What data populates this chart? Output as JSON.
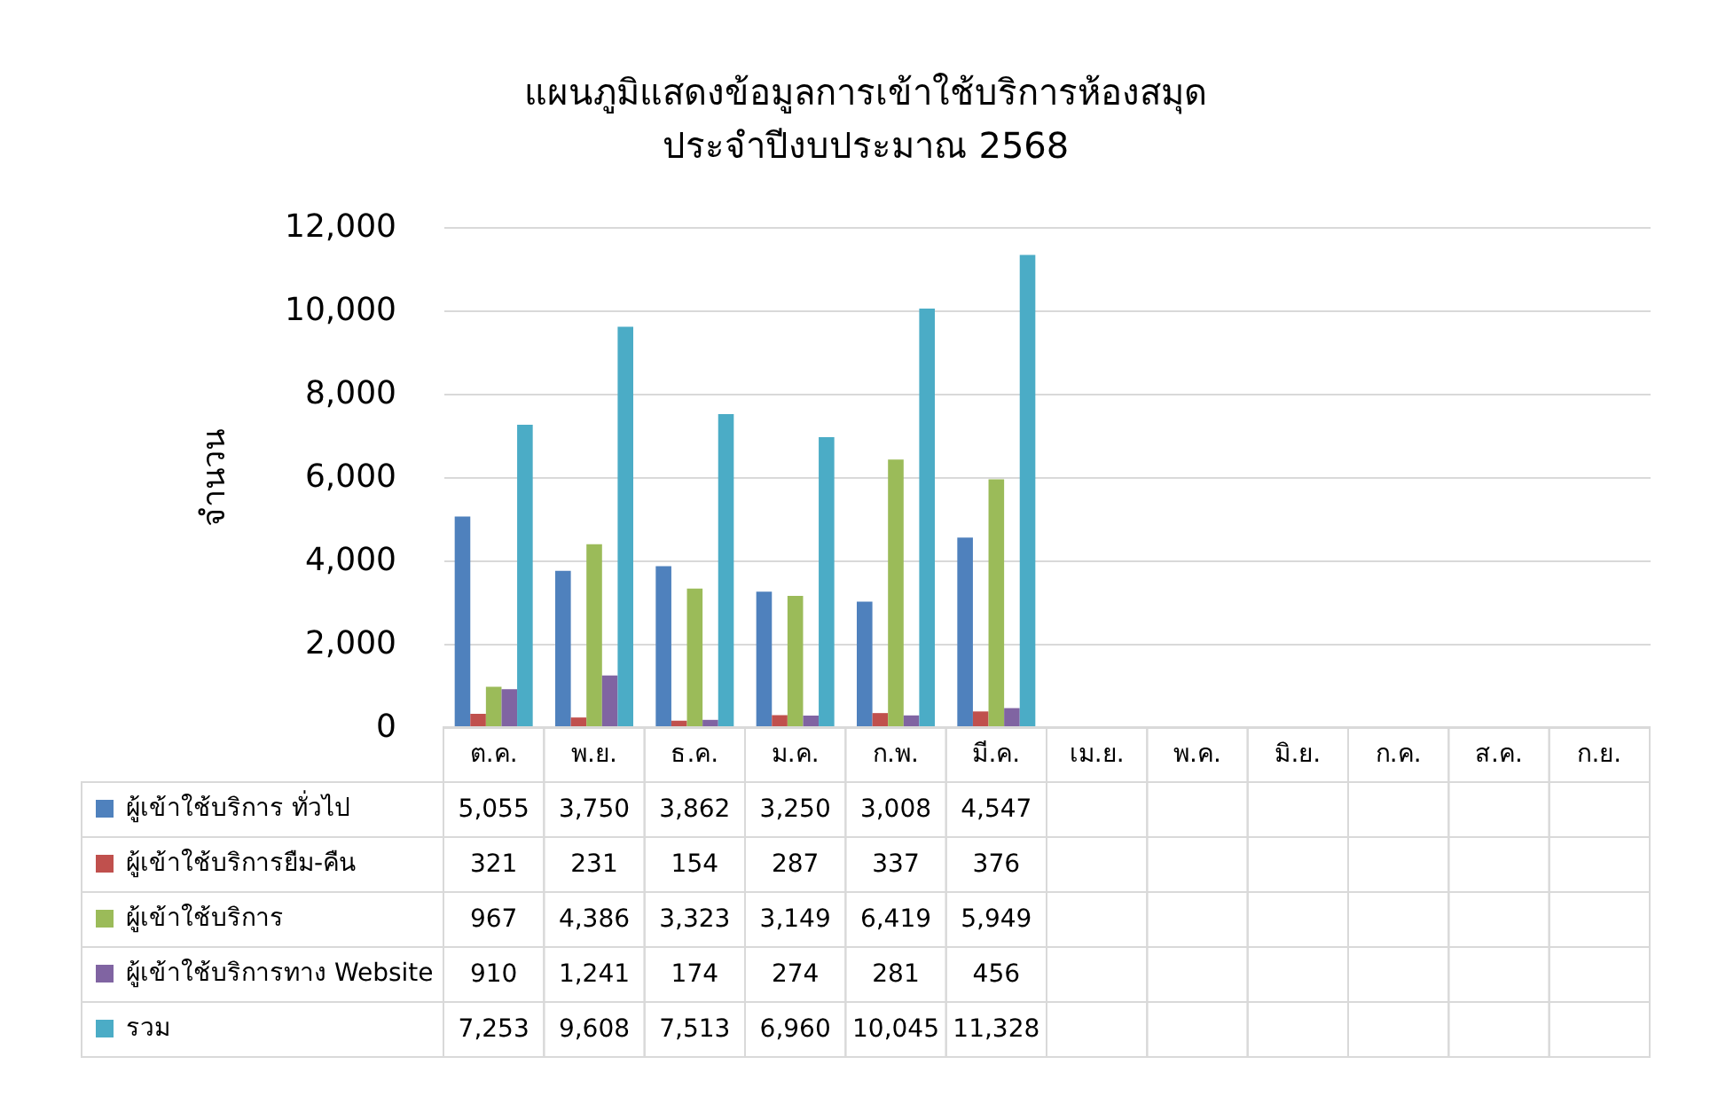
{
  "chart_data": {
    "type": "bar",
    "title": "แผนภูมิแสดงข้อมูลการเข้าใช้บริการห้องสมุด",
    "subtitle": "ประจำปีงบประมาณ 2568",
    "ylabel": "จำนวน",
    "categories": [
      "ต.ค.",
      "พ.ย.",
      "ธ.ค.",
      "ม.ค.",
      "ก.พ.",
      "มี.ค.",
      "เม.ย.",
      "พ.ค.",
      "มิ.ย.",
      "ก.ค.",
      "ส.ค.",
      "ก.ย."
    ],
    "series": [
      {
        "name": "ผู้เข้าใช้บริการ ทั่วไป",
        "color": "#4f81bd",
        "values": [
          5055,
          3750,
          3862,
          3250,
          3008,
          4547,
          null,
          null,
          null,
          null,
          null,
          null
        ],
        "value_labels": [
          "5,055",
          "3,750",
          "3,862",
          "3,250",
          "3,008",
          "4,547",
          null,
          null,
          null,
          null,
          null,
          null
        ]
      },
      {
        "name": "ผู้เข้าใช้บริการยืม-คืน",
        "color": "#c0504d",
        "values": [
          321,
          231,
          154,
          287,
          337,
          376,
          null,
          null,
          null,
          null,
          null,
          null
        ],
        "value_labels": [
          "321",
          "231",
          "154",
          "287",
          "337",
          "376",
          null,
          null,
          null,
          null,
          null,
          null
        ]
      },
      {
        "name": "ผู้เข้าใช้บริการ",
        "color": "#9bbb59",
        "values": [
          967,
          4386,
          3323,
          3149,
          6419,
          5949,
          null,
          null,
          null,
          null,
          null,
          null
        ],
        "value_labels": [
          "967",
          "4,386",
          "3,323",
          "3,149",
          "6,419",
          "5,949",
          null,
          null,
          null,
          null,
          null,
          null
        ]
      },
      {
        "name": "ผู้เข้าใช้บริการทาง Website",
        "color": "#8064a2",
        "values": [
          910,
          1241,
          174,
          274,
          281,
          456,
          null,
          null,
          null,
          null,
          null,
          null
        ],
        "value_labels": [
          "910",
          "1,241",
          "174",
          "274",
          "281",
          "456",
          null,
          null,
          null,
          null,
          null,
          null
        ]
      },
      {
        "name": "รวม",
        "color": "#4bacc6",
        "values": [
          7253,
          9608,
          7513,
          6960,
          10045,
          11328,
          null,
          null,
          null,
          null,
          null,
          null
        ],
        "value_labels": [
          "7,253",
          "9,608",
          "7,513",
          "6,960",
          "10,045",
          "11,328",
          null,
          null,
          null,
          null,
          null,
          null
        ]
      }
    ],
    "ylim": [
      0,
      12000
    ],
    "yticks": [
      0,
      {
        "value": 2000,
        "label": "2,000"
      },
      {
        "value": 4000,
        "label": "4,000"
      },
      {
        "value": 6000,
        "label": "6,000"
      },
      {
        "value": 8000,
        "label": "8,000"
      },
      {
        "value": 10000,
        "label": "10,000"
      },
      {
        "value": 12000,
        "label": "12,000"
      }
    ],
    "grid": "y",
    "legend": "bottom left"
  }
}
